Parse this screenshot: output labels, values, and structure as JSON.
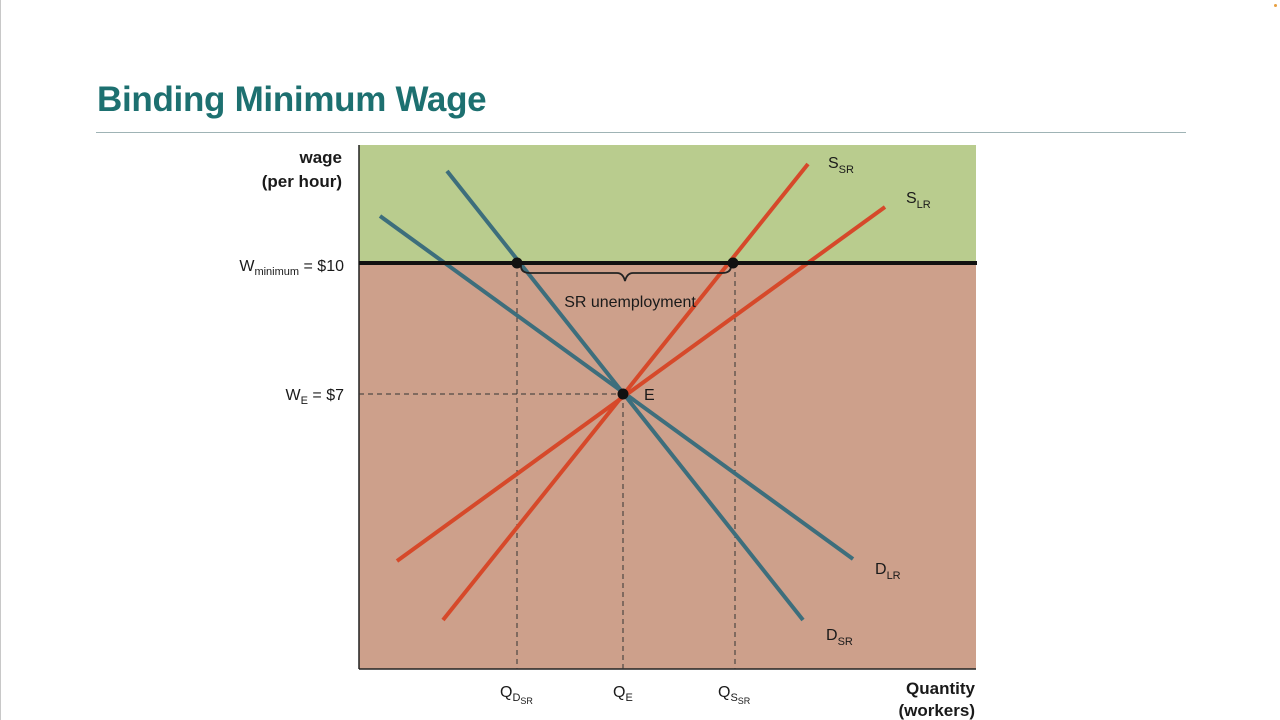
{
  "slide": {
    "title": "Binding Minimum Wage"
  },
  "axes": {
    "y_title_line1": "wage",
    "y_title_line2": "(per hour)",
    "x_title_line1": "Quantity",
    "x_title_line2": "(workers)"
  },
  "wage_labels": {
    "minimum": {
      "main": "W",
      "sub": "minimum",
      "rest": " = $10"
    },
    "equilibrium": {
      "main": "W",
      "sub": "E",
      "rest": " = $7"
    }
  },
  "quantity_labels": {
    "qd_sr": {
      "main": "Q",
      "sub": "D",
      "subsub": "SR"
    },
    "qe": {
      "main": "Q",
      "sub": "E"
    },
    "qs_sr": {
      "main": "Q",
      "sub": "S",
      "subsub": "SR"
    }
  },
  "curves": {
    "s_sr": {
      "main": "S",
      "sub": "SR",
      "color": "#d6492a"
    },
    "s_lr": {
      "main": "S",
      "sub": "LR",
      "color": "#d6492a"
    },
    "d_lr": {
      "main": "D",
      "sub": "LR",
      "color": "#3d6e7c"
    },
    "d_sr": {
      "main": "D",
      "sub": "SR",
      "color": "#3d6e7c"
    }
  },
  "annotations": {
    "unemployment": "SR unemployment",
    "equilibrium_point": "E"
  },
  "colors": {
    "region_above_minimum": "#b9cc8e",
    "region_below_minimum": "#cda08b",
    "title": "#1d7070"
  }
}
